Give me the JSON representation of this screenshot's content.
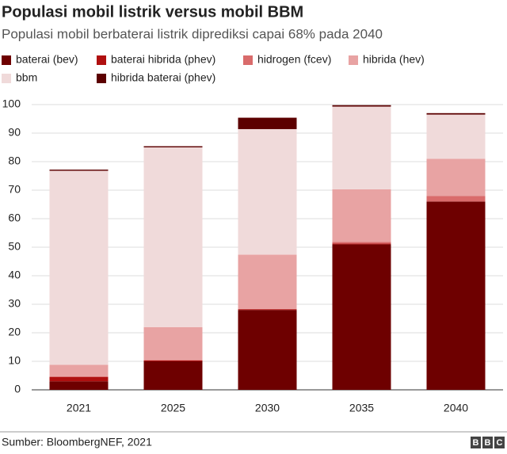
{
  "chart_data": {
    "type": "stacked_bar",
    "title": "Populasi mobil listrik versus mobil BBM",
    "subtitle": "Populasi mobil berbaterai listrik diprediksi capai 68% pada 2040",
    "categories": [
      "2021",
      "2025",
      "2030",
      "2035",
      "2040"
    ],
    "series": [
      {
        "name": "baterai (bev)",
        "color": "#6e0000",
        "values": [
          3,
          10,
          28,
          51,
          66
        ]
      },
      {
        "name": "baterai hibrida (phev)",
        "color": "#b01010",
        "values": [
          1.5,
          0.3,
          0.2,
          0.3,
          0
        ]
      },
      {
        "name": "hidrogen (fcev)",
        "color": "#d96b6b",
        "values": [
          0.3,
          0.2,
          0.2,
          0.5,
          2
        ]
      },
      {
        "name": "hibrida (hev)",
        "color": "#e8a3a3",
        "values": [
          4,
          11.5,
          19,
          18.5,
          13
        ]
      },
      {
        "name": "bbm",
        "color": "#f0dada",
        "values": [
          68,
          63,
          44,
          29,
          15.5
        ]
      },
      {
        "name": "hibrida baterai (phev)",
        "color": "#5c0000",
        "values": [
          0.4,
          0.4,
          4,
          0.5,
          0.5
        ]
      }
    ],
    "ylim": [
      0,
      100
    ],
    "yticks": [
      0,
      10,
      20,
      30,
      40,
      50,
      60,
      70,
      80,
      90,
      100
    ],
    "grid": true,
    "source": "Sumber: BloombergNEF, 2021",
    "logo": [
      "B",
      "B",
      "C"
    ]
  }
}
